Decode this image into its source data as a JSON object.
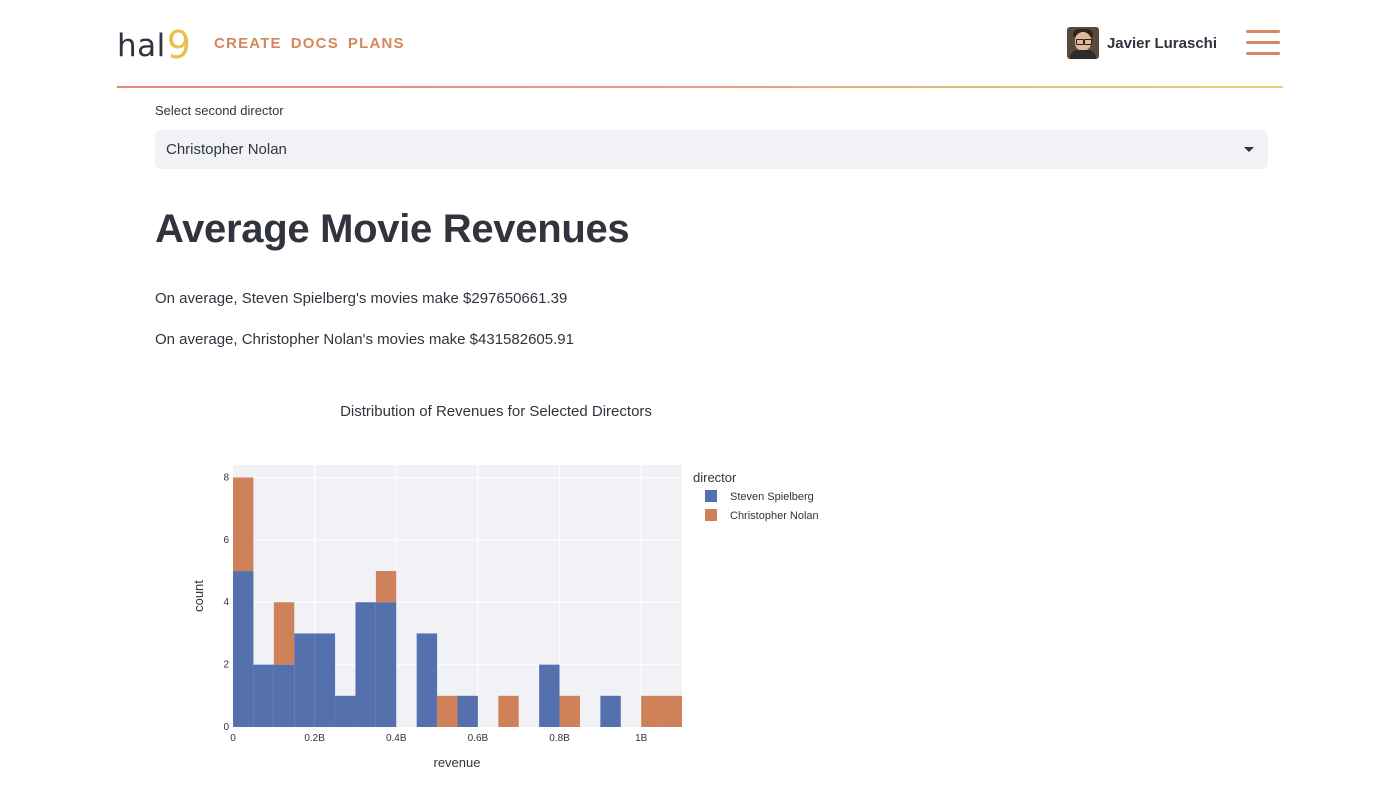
{
  "header": {
    "brand_text": "hal",
    "brand_nine": "9",
    "nav": [
      "CREATE",
      "DOCS",
      "PLANS"
    ],
    "user_name": "Javier Luraschi"
  },
  "select": {
    "label": "Select second director",
    "value": "Christopher Nolan"
  },
  "content": {
    "title": "Average Movie Revenues",
    "line1": "On average, Steven Spielberg's movies make $297650661.39",
    "line2": "On average, Christopher Nolan's movies make $431582605.91"
  },
  "colors": {
    "accent": "#d4875c",
    "spielberg": "#5470ad",
    "nolan": "#cf825a",
    "plot_bg": "#f0f2f6"
  },
  "chart_data": {
    "type": "bar",
    "title": "Distribution of Revenues for Selected Directors",
    "xlabel": "revenue",
    "ylabel": "count",
    "legend_title": "director",
    "legend_placement": "right",
    "stacked": true,
    "xlim": [
      0,
      1.1
    ],
    "ylim": [
      0,
      8.4
    ],
    "x_ticks": [
      0,
      0.2,
      0.4,
      0.6,
      0.8,
      1.0
    ],
    "x_tick_labels": [
      "0",
      "0.2B",
      "0.4B",
      "0.6B",
      "0.8B",
      "1B"
    ],
    "y_ticks": [
      0,
      2,
      4,
      6,
      8
    ],
    "y_tick_labels": [
      "0",
      "2",
      "4",
      "6",
      "8"
    ],
    "bin_width": 0.05,
    "bin_starts": [
      0,
      0.05,
      0.1,
      0.15,
      0.2,
      0.25,
      0.3,
      0.35,
      0.45,
      0.5,
      0.55,
      0.65,
      0.75,
      0.8,
      0.9,
      1.0,
      1.05
    ],
    "series": [
      {
        "name": "Steven Spielberg",
        "values": [
          5,
          2,
          2,
          3,
          3,
          1,
          4,
          4,
          3,
          0,
          1,
          0,
          2,
          0,
          1,
          0,
          0
        ]
      },
      {
        "name": "Christopher Nolan",
        "values": [
          3,
          0,
          2,
          0,
          0,
          0,
          0,
          1,
          0,
          1,
          0,
          1,
          0,
          1,
          0,
          1,
          1
        ]
      }
    ]
  }
}
